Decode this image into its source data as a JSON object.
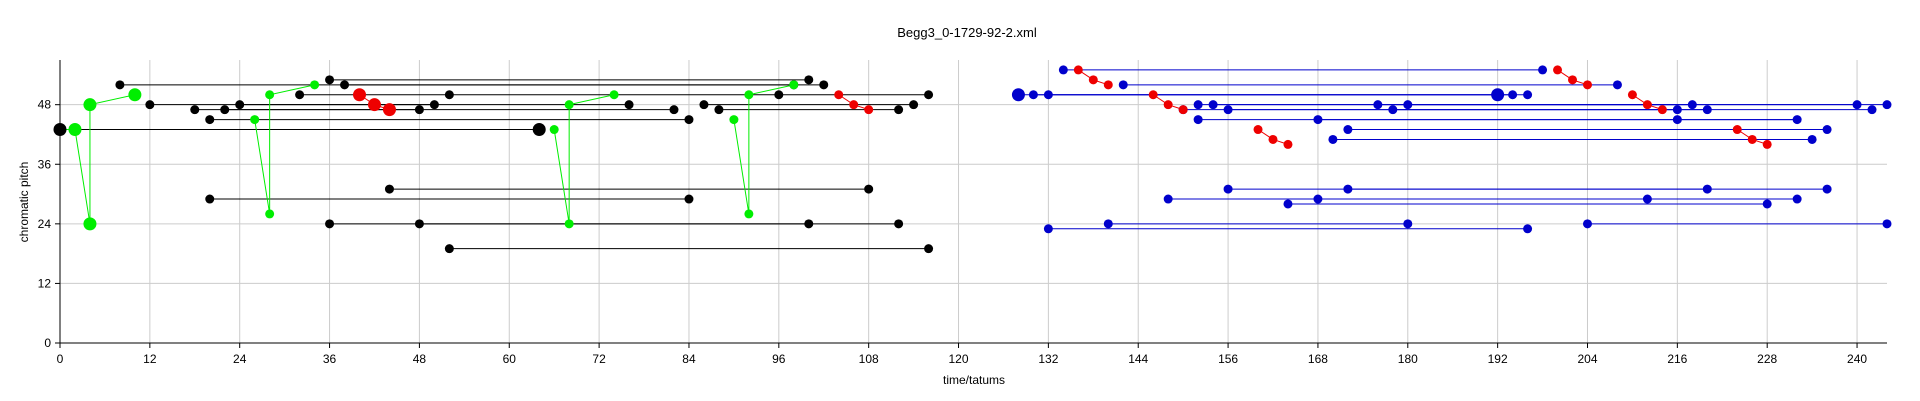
{
  "chart_data": {
    "type": "scatter",
    "title": "Begg3_0-1729-92-2.xml",
    "xlabel": "time/tatums",
    "ylabel": "chromatic pitch",
    "xlim": [
      0,
      244
    ],
    "ylim": [
      0,
      57
    ],
    "xticks": [
      0,
      12,
      24,
      36,
      48,
      60,
      72,
      84,
      96,
      108,
      120,
      132,
      144,
      156,
      168,
      180,
      192,
      204,
      216,
      228,
      240
    ],
    "yticks": [
      0,
      12,
      24,
      36,
      48
    ],
    "grid": true,
    "colors": {
      "black": "#000000",
      "green": "#00ee00",
      "red": "#ee0000",
      "blue": "#0000cc",
      "grid": "#cccccc"
    },
    "black_lines": [
      [
        [
          8,
          52
        ],
        [
          98,
          52
        ]
      ],
      [
        [
          36,
          53
        ],
        [
          100,
          53
        ]
      ],
      [
        [
          38,
          52
        ],
        [
          102,
          52
        ]
      ],
      [
        [
          32,
          50
        ],
        [
          116,
          50
        ]
      ],
      [
        [
          12,
          48
        ],
        [
          76,
          48
        ]
      ],
      [
        [
          18,
          47
        ],
        [
          82,
          47
        ]
      ],
      [
        [
          22,
          47
        ],
        [
          48,
          47
        ]
      ],
      [
        [
          24,
          48
        ],
        [
          50,
          48
        ]
      ],
      [
        [
          20,
          45
        ],
        [
          84,
          45
        ]
      ],
      [
        [
          86,
          48
        ],
        [
          114,
          48
        ]
      ],
      [
        [
          88,
          47
        ],
        [
          112,
          47
        ]
      ],
      [
        [
          0,
          43
        ],
        [
          64,
          43
        ]
      ],
      [
        [
          20,
          29
        ],
        [
          84,
          29
        ]
      ],
      [
        [
          44,
          31
        ],
        [
          108,
          31
        ]
      ],
      [
        [
          36,
          24
        ],
        [
          100,
          24
        ]
      ],
      [
        [
          48,
          24
        ],
        [
          112,
          24
        ]
      ],
      [
        [
          52,
          19
        ],
        [
          116,
          19
        ]
      ]
    ],
    "black_points": [
      [
        8,
        52
      ],
      [
        98,
        52
      ],
      [
        36,
        53
      ],
      [
        100,
        53
      ],
      [
        38,
        52
      ],
      [
        102,
        52
      ],
      [
        32,
        50
      ],
      [
        52,
        50
      ],
      [
        96,
        50
      ],
      [
        116,
        50
      ],
      [
        12,
        48
      ],
      [
        50,
        48
      ],
      [
        24,
        48
      ],
      [
        76,
        48
      ],
      [
        86,
        48
      ],
      [
        114,
        48
      ],
      [
        18,
        47
      ],
      [
        22,
        47
      ],
      [
        48,
        47
      ],
      [
        82,
        47
      ],
      [
        88,
        47
      ],
      [
        112,
        47
      ],
      [
        20,
        45
      ],
      [
        84,
        45
      ],
      [
        20,
        29
      ],
      [
        84,
        29
      ],
      [
        44,
        31
      ],
      [
        108,
        31
      ],
      [
        36,
        24
      ],
      [
        48,
        24
      ],
      [
        100,
        24
      ],
      [
        112,
        24
      ],
      [
        52,
        19
      ],
      [
        116,
        19
      ]
    ],
    "black_big_points": [
      [
        0,
        43
      ],
      [
        64,
        43
      ]
    ],
    "green_lines": [
      [
        [
          0,
          43
        ],
        [
          2,
          43
        ],
        [
          4,
          24
        ],
        [
          4,
          48
        ],
        [
          10,
          50
        ]
      ],
      [
        [
          26,
          45
        ],
        [
          28,
          26
        ],
        [
          28,
          50
        ],
        [
          34,
          52
        ]
      ],
      [
        [
          66,
          43
        ],
        [
          68,
          24
        ],
        [
          68,
          48
        ],
        [
          74,
          50
        ]
      ],
      [
        [
          90,
          45
        ],
        [
          92,
          26
        ],
        [
          92,
          50
        ],
        [
          98,
          52
        ]
      ]
    ],
    "green_points": [
      [
        26,
        45
      ],
      [
        28,
        26
      ],
      [
        28,
        50
      ],
      [
        34,
        52
      ],
      [
        66,
        43
      ],
      [
        68,
        24
      ],
      [
        68,
        48
      ],
      [
        74,
        50
      ],
      [
        90,
        45
      ],
      [
        92,
        26
      ],
      [
        92,
        50
      ],
      [
        98,
        52
      ]
    ],
    "green_big_points": [
      [
        2,
        43
      ],
      [
        4,
        24
      ],
      [
        4,
        48
      ],
      [
        10,
        50
      ]
    ],
    "red_lines": [
      [
        [
          40,
          50
        ],
        [
          42,
          48
        ],
        [
          44,
          47
        ]
      ],
      [
        [
          104,
          50
        ],
        [
          106,
          48
        ],
        [
          108,
          47
        ]
      ],
      [
        [
          136,
          55
        ],
        [
          138,
          53
        ],
        [
          140,
          52
        ]
      ],
      [
        [
          146,
          50
        ],
        [
          148,
          48
        ],
        [
          150,
          47
        ]
      ],
      [
        [
          160,
          43
        ],
        [
          162,
          41
        ],
        [
          164,
          40
        ]
      ],
      [
        [
          200,
          55
        ],
        [
          202,
          53
        ],
        [
          204,
          52
        ]
      ],
      [
        [
          210,
          50
        ],
        [
          212,
          48
        ],
        [
          214,
          47
        ]
      ],
      [
        [
          224,
          43
        ],
        [
          226,
          41
        ],
        [
          228,
          40
        ]
      ]
    ],
    "red_points": [
      [
        104,
        50
      ],
      [
        106,
        48
      ],
      [
        108,
        47
      ],
      [
        136,
        55
      ],
      [
        138,
        53
      ],
      [
        140,
        52
      ],
      [
        146,
        50
      ],
      [
        148,
        48
      ],
      [
        150,
        47
      ],
      [
        160,
        43
      ],
      [
        162,
        41
      ],
      [
        164,
        40
      ],
      [
        200,
        55
      ],
      [
        202,
        53
      ],
      [
        204,
        52
      ],
      [
        210,
        50
      ],
      [
        212,
        48
      ],
      [
        214,
        47
      ],
      [
        224,
        43
      ],
      [
        226,
        41
      ],
      [
        228,
        40
      ]
    ],
    "red_big_points": [
      [
        40,
        50
      ],
      [
        42,
        48
      ],
      [
        44,
        47
      ]
    ],
    "blue_lines": [
      [
        [
          134,
          55
        ],
        [
          198,
          55
        ]
      ],
      [
        [
          142,
          52
        ],
        [
          208,
          52
        ]
      ],
      [
        [
          128,
          50
        ],
        [
          196,
          50
        ]
      ],
      [
        [
          130,
          50
        ],
        [
          194,
          50
        ]
      ],
      [
        [
          132,
          50
        ],
        [
          192,
          50
        ]
      ],
      [
        [
          152,
          48
        ],
        [
          218,
          48
        ]
      ],
      [
        [
          154,
          48
        ],
        [
          240,
          48
        ]
      ],
      [
        [
          156,
          47
        ],
        [
          220,
          47
        ]
      ],
      [
        [
          150,
          47
        ],
        [
          216,
          47
        ]
      ],
      [
        [
          176,
          48
        ],
        [
          244,
          48
        ]
      ],
      [
        [
          178,
          47
        ],
        [
          242,
          47
        ]
      ],
      [
        [
          180,
          48
        ],
        [
          216,
          48
        ]
      ],
      [
        [
          152,
          45
        ],
        [
          232,
          45
        ]
      ],
      [
        [
          168,
          45
        ],
        [
          232,
          45
        ]
      ],
      [
        [
          172,
          43
        ],
        [
          236,
          43
        ]
      ],
      [
        [
          170,
          41
        ],
        [
          234,
          41
        ]
      ],
      [
        [
          156,
          31
        ],
        [
          220,
          31
        ]
      ],
      [
        [
          172,
          31
        ],
        [
          236,
          31
        ]
      ],
      [
        [
          148,
          29
        ],
        [
          212,
          29
        ]
      ],
      [
        [
          168,
          29
        ],
        [
          232,
          29
        ]
      ],
      [
        [
          164,
          28
        ],
        [
          228,
          28
        ]
      ],
      [
        [
          132,
          23
        ],
        [
          196,
          23
        ]
      ],
      [
        [
          140,
          24
        ],
        [
          180,
          24
        ]
      ],
      [
        [
          204,
          24
        ],
        [
          244,
          24
        ]
      ]
    ],
    "blue_points": [
      [
        134,
        55
      ],
      [
        198,
        55
      ],
      [
        142,
        52
      ],
      [
        208,
        52
      ],
      [
        130,
        50
      ],
      [
        132,
        50
      ],
      [
        194,
        50
      ],
      [
        196,
        50
      ],
      [
        152,
        48
      ],
      [
        154,
        48
      ],
      [
        176,
        48
      ],
      [
        180,
        48
      ],
      [
        218,
        48
      ],
      [
        240,
        48
      ],
      [
        244,
        48
      ],
      [
        150,
        47
      ],
      [
        156,
        47
      ],
      [
        178,
        47
      ],
      [
        216,
        47
      ],
      [
        220,
        47
      ],
      [
        242,
        47
      ],
      [
        152,
        45
      ],
      [
        168,
        45
      ],
      [
        216,
        45
      ],
      [
        232,
        45
      ],
      [
        172,
        43
      ],
      [
        236,
        43
      ],
      [
        170,
        41
      ],
      [
        234,
        41
      ],
      [
        156,
        31
      ],
      [
        172,
        31
      ],
      [
        220,
        31
      ],
      [
        236,
        31
      ],
      [
        148,
        29
      ],
      [
        168,
        29
      ],
      [
        212,
        29
      ],
      [
        232,
        29
      ],
      [
        164,
        28
      ],
      [
        228,
        28
      ],
      [
        132,
        23
      ],
      [
        140,
        24
      ],
      [
        180,
        24
      ],
      [
        196,
        23
      ],
      [
        204,
        24
      ],
      [
        244,
        24
      ]
    ],
    "blue_big_points": [
      [
        128,
        50
      ],
      [
        192,
        50
      ]
    ]
  }
}
